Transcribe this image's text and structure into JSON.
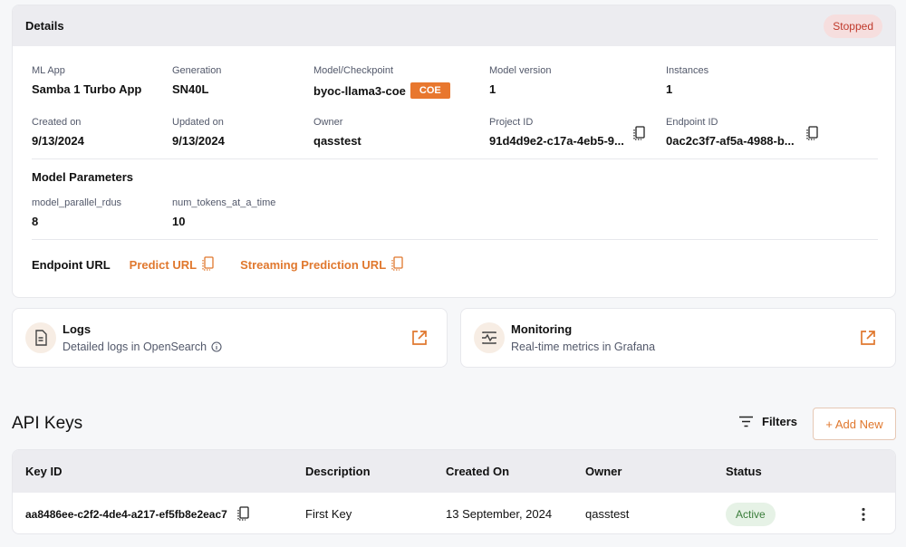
{
  "details": {
    "title": "Details",
    "status": "Stopped",
    "fields": {
      "ml_app": {
        "label": "ML App",
        "value": "Samba 1 Turbo App"
      },
      "generation": {
        "label": "Generation",
        "value": "SN40L"
      },
      "model_checkpoint": {
        "label": "Model/Checkpoint",
        "value": "byoc-llama3-coe",
        "tag": "COE"
      },
      "model_version": {
        "label": "Model version",
        "value": "1"
      },
      "instances": {
        "label": "Instances",
        "value": "1"
      },
      "created_on": {
        "label": "Created on",
        "value": "9/13/2024"
      },
      "updated_on": {
        "label": "Updated on",
        "value": "9/13/2024"
      },
      "owner": {
        "label": "Owner",
        "value": "qasstest"
      },
      "project_id": {
        "label": "Project ID",
        "value": "91d4d9e2-c17a-4eb5-9..."
      },
      "endpoint_id": {
        "label": "Endpoint ID",
        "value": "0ac2c3f7-af5a-4988-b..."
      }
    },
    "model_parameters": {
      "title": "Model Parameters",
      "params": [
        {
          "label": "model_parallel_rdus",
          "value": "8"
        },
        {
          "label": "num_tokens_at_a_time",
          "value": "10"
        }
      ]
    },
    "endpoint_url": {
      "label": "Endpoint URL",
      "predict": "Predict URL",
      "streaming": "Streaming Prediction URL"
    }
  },
  "logs": {
    "title": "Logs",
    "subtitle": "Detailed logs in OpenSearch"
  },
  "monitoring": {
    "title": "Monitoring",
    "subtitle": "Real-time metrics in Grafana"
  },
  "api_keys": {
    "title": "API Keys",
    "filters_label": "Filters",
    "add_new_label": "+ Add New",
    "columns": [
      "Key ID",
      "Description",
      "Created On",
      "Owner",
      "Status"
    ],
    "rows": [
      {
        "key_id": "aa8486ee-c2f2-4de4-a217-ef5fb8e2eac7",
        "description": "First Key",
        "created_on": "13 September, 2024",
        "owner": "qasstest",
        "status": "Active"
      }
    ]
  },
  "colors": {
    "accent": "#e0782e",
    "stopped": "#c0392b",
    "active": "#3a7d3a"
  }
}
